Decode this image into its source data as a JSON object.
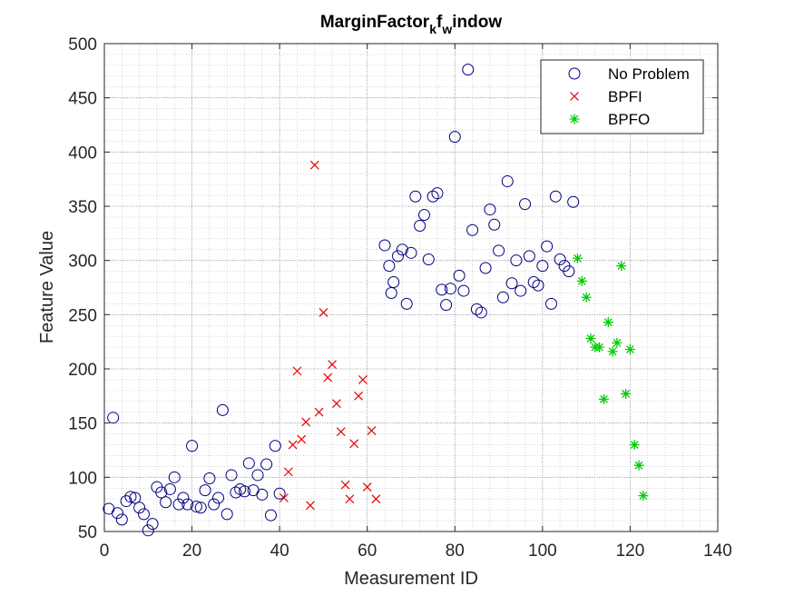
{
  "chart_data": {
    "type": "scatter",
    "title": {
      "main": "MarginFactor",
      "sub1": "k",
      "mid": "f",
      "sub2": "w",
      "tail": "indow"
    },
    "xlabel": "Measurement ID",
    "ylabel": "Feature Value",
    "xlim": [
      0,
      140
    ],
    "ylim": [
      50,
      500
    ],
    "xticks": [
      "0",
      "20",
      "40",
      "60",
      "80",
      "100",
      "120",
      "140"
    ],
    "yticks": [
      "50",
      "100",
      "150",
      "200",
      "250",
      "300",
      "350",
      "400",
      "450",
      "500"
    ],
    "grid": true,
    "minor_grid": true,
    "legend_position": "top-right",
    "series": [
      {
        "name": "No Problem",
        "marker": "circle",
        "color": "#00007f",
        "points": [
          [
            1,
            71
          ],
          [
            2,
            155
          ],
          [
            3,
            67
          ],
          [
            4,
            61
          ],
          [
            5,
            78
          ],
          [
            6,
            82
          ],
          [
            7,
            81
          ],
          [
            8,
            72
          ],
          [
            9,
            66
          ],
          [
            10,
            51
          ],
          [
            11,
            57
          ],
          [
            12,
            91
          ],
          [
            13,
            86
          ],
          [
            14,
            77
          ],
          [
            15,
            89
          ],
          [
            16,
            100
          ],
          [
            17,
            75
          ],
          [
            18,
            81
          ],
          [
            19,
            75
          ],
          [
            20,
            129
          ],
          [
            21,
            73
          ],
          [
            22,
            72
          ],
          [
            23,
            88
          ],
          [
            24,
            99
          ],
          [
            25,
            75
          ],
          [
            26,
            81
          ],
          [
            27,
            162
          ],
          [
            28,
            66
          ],
          [
            29,
            102
          ],
          [
            30,
            86
          ],
          [
            31,
            89
          ],
          [
            32,
            87
          ],
          [
            33,
            113
          ],
          [
            34,
            88
          ],
          [
            35,
            102
          ],
          [
            36,
            84
          ],
          [
            37,
            112
          ],
          [
            38,
            65
          ],
          [
            39,
            129
          ],
          [
            40,
            85
          ],
          [
            64,
            314
          ],
          [
            65,
            295
          ],
          [
            65.5,
            270
          ],
          [
            66,
            280
          ],
          [
            67,
            304
          ],
          [
            68,
            310
          ],
          [
            69,
            260
          ],
          [
            70,
            307
          ],
          [
            71,
            359
          ],
          [
            72,
            332
          ],
          [
            73,
            342
          ],
          [
            74,
            301
          ],
          [
            75,
            359
          ],
          [
            76,
            362
          ],
          [
            77,
            273
          ],
          [
            78,
            259
          ],
          [
            79,
            274
          ],
          [
            80,
            414
          ],
          [
            81,
            286
          ],
          [
            82,
            272
          ],
          [
            83,
            476
          ],
          [
            84,
            328
          ],
          [
            85,
            255
          ],
          [
            86,
            252
          ],
          [
            87,
            293
          ],
          [
            88,
            347
          ],
          [
            89,
            333
          ],
          [
            90,
            309
          ],
          [
            91,
            266
          ],
          [
            92,
            373
          ],
          [
            93,
            279
          ],
          [
            94,
            300
          ],
          [
            95,
            272
          ],
          [
            96,
            352
          ],
          [
            97,
            304
          ],
          [
            98,
            280
          ],
          [
            99,
            277
          ],
          [
            100,
            295
          ],
          [
            101,
            313
          ],
          [
            102,
            260
          ],
          [
            103,
            359
          ],
          [
            104,
            301
          ],
          [
            105,
            295
          ],
          [
            106,
            290
          ],
          [
            107,
            354
          ]
        ]
      },
      {
        "name": "BPFI",
        "marker": "x",
        "color": "#e60000",
        "points": [
          [
            41,
            81
          ],
          [
            42,
            105
          ],
          [
            43,
            130
          ],
          [
            44,
            198
          ],
          [
            45,
            135
          ],
          [
            46,
            151
          ],
          [
            47,
            74
          ],
          [
            48,
            388
          ],
          [
            49,
            160
          ],
          [
            50,
            252
          ],
          [
            51,
            192
          ],
          [
            52,
            204
          ],
          [
            53,
            168
          ],
          [
            54,
            142
          ],
          [
            55,
            93
          ],
          [
            56,
            80
          ],
          [
            57,
            131
          ],
          [
            58,
            175
          ],
          [
            59,
            190
          ],
          [
            60,
            91
          ],
          [
            61,
            143
          ],
          [
            62,
            80
          ]
        ]
      },
      {
        "name": "BPFO",
        "marker": "asterisk",
        "color": "#00cc00",
        "points": [
          [
            108,
            302
          ],
          [
            109,
            281
          ],
          [
            110,
            266
          ],
          [
            111,
            228
          ],
          [
            112,
            220
          ],
          [
            113,
            220
          ],
          [
            114,
            172
          ],
          [
            115,
            243
          ],
          [
            116,
            216
          ],
          [
            117,
            224
          ],
          [
            118,
            295
          ],
          [
            119,
            177
          ],
          [
            120,
            218
          ],
          [
            121,
            130
          ],
          [
            122,
            111
          ],
          [
            123,
            83
          ]
        ]
      }
    ]
  }
}
